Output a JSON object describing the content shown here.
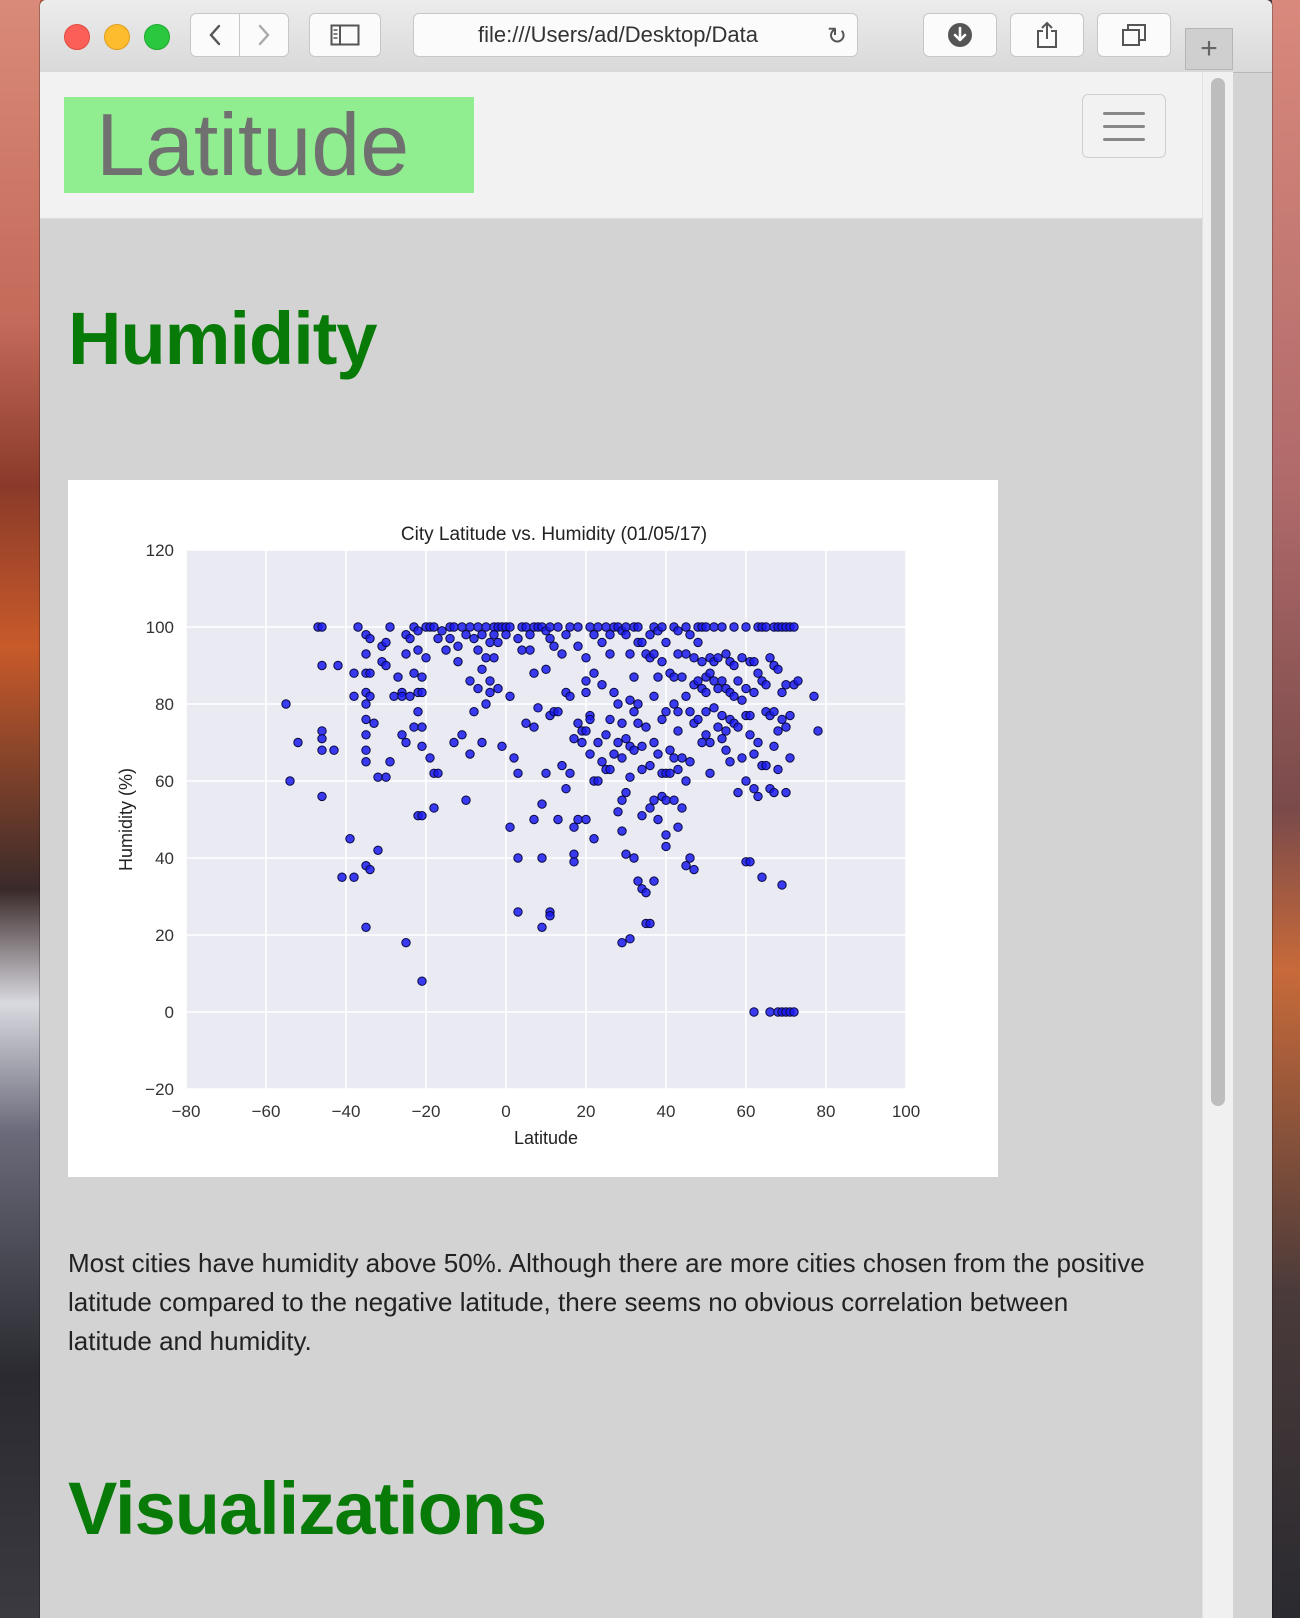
{
  "browser": {
    "url": "file:///Users/ad/Desktop/Data"
  },
  "navbar": {
    "brand": "Latitude"
  },
  "main": {
    "section_title": "Humidity",
    "description": "Most cities have humidity above 50%. Although there are more cities chosen from the positive latitude compared to the negative latitude, there seems no obvious correlation between latitude and humidity.",
    "next_section_title": "Visualizations"
  },
  "chart_data": {
    "type": "scatter",
    "title": "City Latitude vs. Humidity (01/05/17)",
    "xlabel": "Latitude",
    "ylabel": "Humidity (%)",
    "xlim": [
      -80,
      100
    ],
    "ylim": [
      -20,
      120
    ],
    "xticks": [
      "−80",
      "−60",
      "−40",
      "−20",
      "0",
      "20",
      "40",
      "60",
      "80",
      "100"
    ],
    "yticks": [
      "−20",
      "0",
      "20",
      "40",
      "60",
      "80",
      "100",
      "120"
    ],
    "grid": true,
    "colors": {
      "marker": "#1a1aee",
      "edge": "#0a0a40",
      "background": "#eaeaf2"
    },
    "points": [
      [
        -55,
        80
      ],
      [
        -54,
        60
      ],
      [
        -52,
        70
      ],
      [
        -47,
        100
      ],
      [
        -46,
        100
      ],
      [
        -46,
        90
      ],
      [
        -46,
        73
      ],
      [
        -46,
        71
      ],
      [
        -46,
        68
      ],
      [
        -46,
        56
      ],
      [
        -43,
        68
      ],
      [
        -42,
        90
      ],
      [
        -41,
        35
      ],
      [
        -39,
        45
      ],
      [
        -38,
        88
      ],
      [
        -38,
        82
      ],
      [
        -38,
        35
      ],
      [
        -37,
        100
      ],
      [
        -35,
        98
      ],
      [
        -35,
        93
      ],
      [
        -35,
        88
      ],
      [
        -35,
        83
      ],
      [
        -35,
        80
      ],
      [
        -35,
        76
      ],
      [
        -35,
        72
      ],
      [
        -35,
        68
      ],
      [
        -35,
        65
      ],
      [
        -35,
        38
      ],
      [
        -35,
        22
      ],
      [
        -34,
        97
      ],
      [
        -34,
        88
      ],
      [
        -34,
        82
      ],
      [
        -34,
        37
      ],
      [
        -33,
        75
      ],
      [
        -32,
        61
      ],
      [
        -32,
        42
      ],
      [
        -31,
        95
      ],
      [
        -31,
        91
      ],
      [
        -30,
        96
      ],
      [
        -30,
        90
      ],
      [
        -30,
        61
      ],
      [
        -29,
        100
      ],
      [
        -29,
        65
      ],
      [
        -28,
        82
      ],
      [
        -27,
        87
      ],
      [
        -26,
        83
      ],
      [
        -26,
        82
      ],
      [
        -26,
        72
      ],
      [
        -25,
        98
      ],
      [
        -25,
        93
      ],
      [
        -25,
        70
      ],
      [
        -25,
        18
      ],
      [
        -24,
        97
      ],
      [
        -24,
        82
      ],
      [
        -23,
        100
      ],
      [
        -23,
        88
      ],
      [
        -23,
        74
      ],
      [
        -22,
        99
      ],
      [
        -22,
        94
      ],
      [
        -22,
        83
      ],
      [
        -22,
        78
      ],
      [
        -22,
        51
      ],
      [
        -21,
        87
      ],
      [
        -21,
        83
      ],
      [
        -21,
        74
      ],
      [
        -21,
        69
      ],
      [
        -21,
        51
      ],
      [
        -21,
        8
      ],
      [
        -20,
        100
      ],
      [
        -20,
        92
      ],
      [
        -19,
        100
      ],
      [
        -19,
        66
      ],
      [
        -18,
        100
      ],
      [
        -18,
        62
      ],
      [
        -18,
        53
      ],
      [
        -17,
        97
      ],
      [
        -17,
        62
      ],
      [
        -16,
        99
      ],
      [
        -15,
        94
      ],
      [
        -14,
        100
      ],
      [
        -14,
        97
      ],
      [
        -13,
        100
      ],
      [
        -13,
        70
      ],
      [
        -12,
        95
      ],
      [
        -12,
        91
      ],
      [
        -11,
        100
      ],
      [
        -11,
        72
      ],
      [
        -10,
        98
      ],
      [
        -10,
        55
      ],
      [
        -9,
        100
      ],
      [
        -9,
        86
      ],
      [
        -9,
        67
      ],
      [
        -8,
        97
      ],
      [
        -8,
        78
      ],
      [
        -7,
        100
      ],
      [
        -7,
        94
      ],
      [
        -7,
        84
      ],
      [
        -6,
        98
      ],
      [
        -6,
        89
      ],
      [
        -6,
        70
      ],
      [
        -5,
        100
      ],
      [
        -5,
        92
      ],
      [
        -5,
        80
      ],
      [
        -4,
        96
      ],
      [
        -4,
        86
      ],
      [
        -4,
        83
      ],
      [
        -3,
        100
      ],
      [
        -3,
        98
      ],
      [
        -3,
        92
      ],
      [
        -2,
        100
      ],
      [
        -2,
        96
      ],
      [
        -2,
        84
      ],
      [
        -1,
        100
      ],
      [
        -1,
        69
      ],
      [
        0,
        100
      ],
      [
        0,
        98
      ],
      [
        1,
        100
      ],
      [
        1,
        82
      ],
      [
        1,
        48
      ],
      [
        2,
        66
      ],
      [
        3,
        97
      ],
      [
        3,
        62
      ],
      [
        3,
        40
      ],
      [
        3,
        26
      ],
      [
        4,
        100
      ],
      [
        4,
        94
      ],
      [
        5,
        100
      ],
      [
        5,
        75
      ],
      [
        6,
        98
      ],
      [
        6,
        94
      ],
      [
        7,
        100
      ],
      [
        7,
        88
      ],
      [
        7,
        74
      ],
      [
        7,
        50
      ],
      [
        8,
        100
      ],
      [
        8,
        79
      ],
      [
        9,
        100
      ],
      [
        9,
        54
      ],
      [
        9,
        40
      ],
      [
        9,
        22
      ],
      [
        10,
        99
      ],
      [
        10,
        89
      ],
      [
        10,
        62
      ],
      [
        11,
        100
      ],
      [
        11,
        97
      ],
      [
        11,
        77
      ],
      [
        11,
        26
      ],
      [
        11,
        25
      ],
      [
        12,
        95
      ],
      [
        12,
        78
      ],
      [
        13,
        100
      ],
      [
        13,
        78
      ],
      [
        13,
        50
      ],
      [
        14,
        93
      ],
      [
        14,
        64
      ],
      [
        15,
        98
      ],
      [
        15,
        83
      ],
      [
        15,
        58
      ],
      [
        16,
        100
      ],
      [
        16,
        82
      ],
      [
        16,
        62
      ],
      [
        17,
        71
      ],
      [
        17,
        48
      ],
      [
        17,
        41
      ],
      [
        17,
        39
      ],
      [
        18,
        100
      ],
      [
        18,
        95
      ],
      [
        18,
        75
      ],
      [
        18,
        50
      ],
      [
        19,
        73
      ],
      [
        19,
        70
      ],
      [
        20,
        92
      ],
      [
        20,
        86
      ],
      [
        20,
        83
      ],
      [
        20,
        73
      ],
      [
        20,
        50
      ],
      [
        21,
        100
      ],
      [
        21,
        77
      ],
      [
        21,
        76
      ],
      [
        21,
        67
      ],
      [
        22,
        98
      ],
      [
        22,
        88
      ],
      [
        22,
        60
      ],
      [
        22,
        45
      ],
      [
        23,
        100
      ],
      [
        23,
        70
      ],
      [
        23,
        60
      ],
      [
        24,
        96
      ],
      [
        24,
        85
      ],
      [
        24,
        65
      ],
      [
        25,
        100
      ],
      [
        25,
        72
      ],
      [
        25,
        63
      ],
      [
        26,
        98
      ],
      [
        26,
        93
      ],
      [
        26,
        76
      ],
      [
        26,
        63
      ],
      [
        27,
        100
      ],
      [
        27,
        83
      ],
      [
        27,
        67
      ],
      [
        28,
        100
      ],
      [
        28,
        80
      ],
      [
        28,
        70
      ],
      [
        28,
        52
      ],
      [
        29,
        99
      ],
      [
        29,
        75
      ],
      [
        29,
        66
      ],
      [
        29,
        55
      ],
      [
        29,
        47
      ],
      [
        29,
        18
      ],
      [
        30,
        100
      ],
      [
        30,
        98
      ],
      [
        30,
        71
      ],
      [
        30,
        57
      ],
      [
        30,
        41
      ],
      [
        31,
        93
      ],
      [
        31,
        81
      ],
      [
        31,
        69
      ],
      [
        31,
        61
      ],
      [
        31,
        19
      ],
      [
        32,
        100
      ],
      [
        32,
        87
      ],
      [
        32,
        78
      ],
      [
        32,
        68
      ],
      [
        32,
        40
      ],
      [
        33,
        100
      ],
      [
        33,
        96
      ],
      [
        33,
        80
      ],
      [
        33,
        75
      ],
      [
        33,
        34
      ],
      [
        34,
        96
      ],
      [
        34,
        69
      ],
      [
        34,
        63
      ],
      [
        34,
        51
      ],
      [
        34,
        32
      ],
      [
        35,
        93
      ],
      [
        35,
        74
      ],
      [
        35,
        31
      ],
      [
        35,
        23
      ],
      [
        36,
        98
      ],
      [
        36,
        92
      ],
      [
        36,
        64
      ],
      [
        36,
        53
      ],
      [
        36,
        23
      ],
      [
        37,
        100
      ],
      [
        37,
        93
      ],
      [
        37,
        82
      ],
      [
        37,
        70
      ],
      [
        37,
        55
      ],
      [
        37,
        34
      ],
      [
        38,
        99
      ],
      [
        38,
        87
      ],
      [
        38,
        67
      ],
      [
        38,
        50
      ],
      [
        39,
        100
      ],
      [
        39,
        91
      ],
      [
        39,
        76
      ],
      [
        39,
        62
      ],
      [
        39,
        56
      ],
      [
        40,
        96
      ],
      [
        40,
        78
      ],
      [
        40,
        62
      ],
      [
        40,
        55
      ],
      [
        40,
        46
      ],
      [
        40,
        43
      ],
      [
        41,
        88
      ],
      [
        41,
        68
      ],
      [
        41,
        62
      ],
      [
        42,
        100
      ],
      [
        42,
        87
      ],
      [
        42,
        80
      ],
      [
        42,
        66
      ],
      [
        42,
        55
      ],
      [
        43,
        99
      ],
      [
        43,
        93
      ],
      [
        43,
        78
      ],
      [
        43,
        73
      ],
      [
        43,
        63
      ],
      [
        43,
        48
      ],
      [
        44,
        87
      ],
      [
        44,
        66
      ],
      [
        44,
        53
      ],
      [
        45,
        100
      ],
      [
        45,
        93
      ],
      [
        45,
        82
      ],
      [
        45,
        60
      ],
      [
        45,
        38
      ],
      [
        46,
        98
      ],
      [
        46,
        78
      ],
      [
        46,
        65
      ],
      [
        46,
        40
      ],
      [
        47,
        92
      ],
      [
        47,
        85
      ],
      [
        47,
        75
      ],
      [
        47,
        37
      ],
      [
        48,
        100
      ],
      [
        48,
        96
      ],
      [
        48,
        86
      ],
      [
        48,
        76
      ],
      [
        49,
        100
      ],
      [
        49,
        91
      ],
      [
        49,
        84
      ],
      [
        49,
        70
      ],
      [
        50,
        100
      ],
      [
        50,
        87
      ],
      [
        50,
        83
      ],
      [
        50,
        78
      ],
      [
        50,
        72
      ],
      [
        51,
        92
      ],
      [
        51,
        88
      ],
      [
        51,
        70
      ],
      [
        51,
        62
      ],
      [
        52,
        100
      ],
      [
        52,
        91
      ],
      [
        52,
        86
      ],
      [
        52,
        79
      ],
      [
        53,
        92
      ],
      [
        53,
        84
      ],
      [
        53,
        74
      ],
      [
        54,
        100
      ],
      [
        54,
        86
      ],
      [
        54,
        77
      ],
      [
        54,
        71
      ],
      [
        55,
        93
      ],
      [
        55,
        84
      ],
      [
        55,
        73
      ],
      [
        55,
        68
      ],
      [
        56,
        91
      ],
      [
        56,
        83
      ],
      [
        56,
        76
      ],
      [
        56,
        65
      ],
      [
        57,
        100
      ],
      [
        57,
        90
      ],
      [
        57,
        82
      ],
      [
        57,
        75
      ],
      [
        58,
        86
      ],
      [
        58,
        74
      ],
      [
        58,
        57
      ],
      [
        59,
        92
      ],
      [
        59,
        81
      ],
      [
        59,
        66
      ],
      [
        60,
        100
      ],
      [
        60,
        84
      ],
      [
        60,
        77
      ],
      [
        60,
        60
      ],
      [
        60,
        39
      ],
      [
        61,
        91
      ],
      [
        61,
        77
      ],
      [
        61,
        72
      ],
      [
        61,
        39
      ],
      [
        62,
        91
      ],
      [
        62,
        83
      ],
      [
        62,
        67
      ],
      [
        62,
        58
      ],
      [
        62,
        0
      ],
      [
        63,
        100
      ],
      [
        63,
        88
      ],
      [
        63,
        70
      ],
      [
        63,
        56
      ],
      [
        64,
        100
      ],
      [
        64,
        86
      ],
      [
        64,
        64
      ],
      [
        64,
        35
      ],
      [
        65,
        100
      ],
      [
        65,
        85
      ],
      [
        65,
        78
      ],
      [
        65,
        64
      ],
      [
        66,
        92
      ],
      [
        66,
        77
      ],
      [
        66,
        58
      ],
      [
        66,
        0
      ],
      [
        67,
        100
      ],
      [
        67,
        90
      ],
      [
        67,
        78
      ],
      [
        67,
        69
      ],
      [
        67,
        57
      ],
      [
        68,
        100
      ],
      [
        68,
        89
      ],
      [
        68,
        73
      ],
      [
        68,
        63
      ],
      [
        68,
        0
      ],
      [
        69,
        100
      ],
      [
        69,
        83
      ],
      [
        69,
        76
      ],
      [
        69,
        33
      ],
      [
        69,
        0
      ],
      [
        70,
        100
      ],
      [
        70,
        85
      ],
      [
        70,
        74
      ],
      [
        70,
        57
      ],
      [
        70,
        0
      ],
      [
        71,
        100
      ],
      [
        71,
        77
      ],
      [
        71,
        66
      ],
      [
        71,
        0
      ],
      [
        72,
        100
      ],
      [
        72,
        85
      ],
      [
        72,
        0
      ],
      [
        73,
        86
      ],
      [
        77,
        82
      ],
      [
        78,
        73
      ]
    ]
  }
}
